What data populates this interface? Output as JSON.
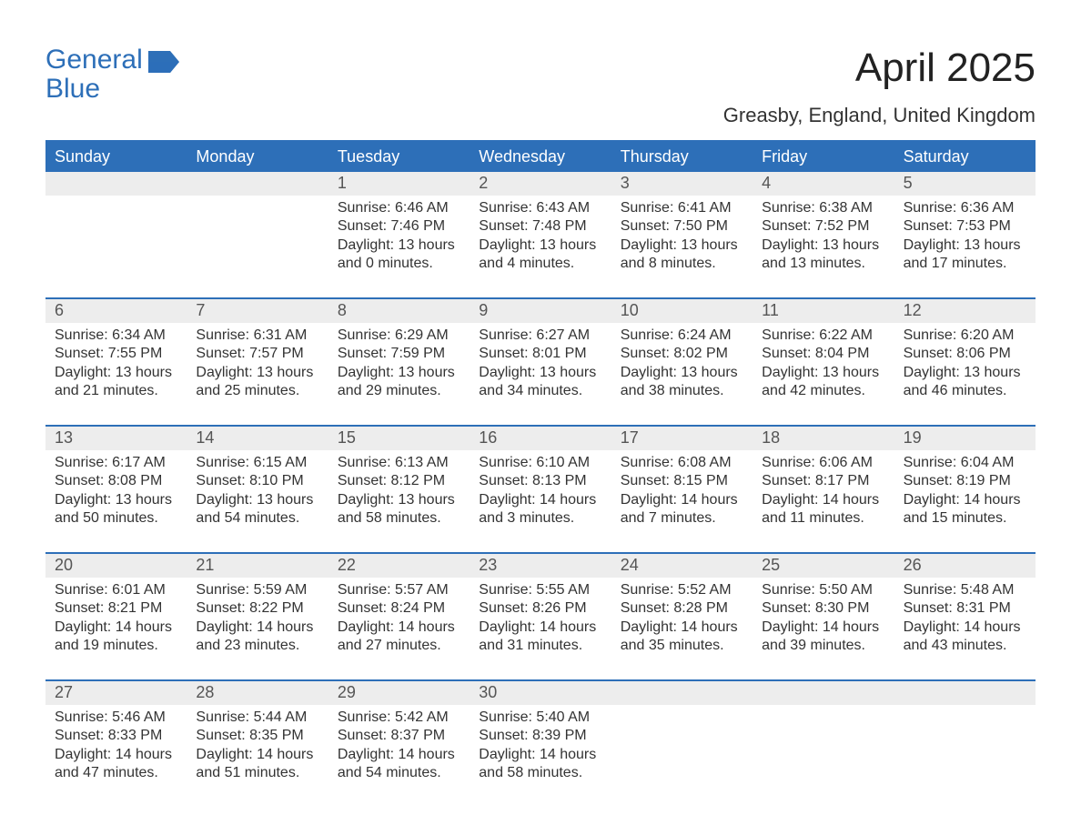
{
  "brand": {
    "line1": "General",
    "line2": "Blue",
    "logo_color": "#2d6fb8"
  },
  "title": "April 2025",
  "subtitle": "Greasby, England, United Kingdom",
  "colors": {
    "header_bg": "#2d6fb8",
    "header_text": "#ffffff",
    "daynum_bg": "#ededed",
    "daynum_text": "#555555",
    "body_text": "#333333",
    "divider": "#2d6fb8",
    "page_bg": "#ffffff"
  },
  "weekdays": [
    "Sunday",
    "Monday",
    "Tuesday",
    "Wednesday",
    "Thursday",
    "Friday",
    "Saturday"
  ],
  "weeks": [
    [
      {
        "num": "",
        "sunrise": "",
        "sunset": "",
        "daylight": ""
      },
      {
        "num": "",
        "sunrise": "",
        "sunset": "",
        "daylight": ""
      },
      {
        "num": "1",
        "sunrise": "Sunrise: 6:46 AM",
        "sunset": "Sunset: 7:46 PM",
        "daylight": "Daylight: 13 hours and 0 minutes."
      },
      {
        "num": "2",
        "sunrise": "Sunrise: 6:43 AM",
        "sunset": "Sunset: 7:48 PM",
        "daylight": "Daylight: 13 hours and 4 minutes."
      },
      {
        "num": "3",
        "sunrise": "Sunrise: 6:41 AM",
        "sunset": "Sunset: 7:50 PM",
        "daylight": "Daylight: 13 hours and 8 minutes."
      },
      {
        "num": "4",
        "sunrise": "Sunrise: 6:38 AM",
        "sunset": "Sunset: 7:52 PM",
        "daylight": "Daylight: 13 hours and 13 minutes."
      },
      {
        "num": "5",
        "sunrise": "Sunrise: 6:36 AM",
        "sunset": "Sunset: 7:53 PM",
        "daylight": "Daylight: 13 hours and 17 minutes."
      }
    ],
    [
      {
        "num": "6",
        "sunrise": "Sunrise: 6:34 AM",
        "sunset": "Sunset: 7:55 PM",
        "daylight": "Daylight: 13 hours and 21 minutes."
      },
      {
        "num": "7",
        "sunrise": "Sunrise: 6:31 AM",
        "sunset": "Sunset: 7:57 PM",
        "daylight": "Daylight: 13 hours and 25 minutes."
      },
      {
        "num": "8",
        "sunrise": "Sunrise: 6:29 AM",
        "sunset": "Sunset: 7:59 PM",
        "daylight": "Daylight: 13 hours and 29 minutes."
      },
      {
        "num": "9",
        "sunrise": "Sunrise: 6:27 AM",
        "sunset": "Sunset: 8:01 PM",
        "daylight": "Daylight: 13 hours and 34 minutes."
      },
      {
        "num": "10",
        "sunrise": "Sunrise: 6:24 AM",
        "sunset": "Sunset: 8:02 PM",
        "daylight": "Daylight: 13 hours and 38 minutes."
      },
      {
        "num": "11",
        "sunrise": "Sunrise: 6:22 AM",
        "sunset": "Sunset: 8:04 PM",
        "daylight": "Daylight: 13 hours and 42 minutes."
      },
      {
        "num": "12",
        "sunrise": "Sunrise: 6:20 AM",
        "sunset": "Sunset: 8:06 PM",
        "daylight": "Daylight: 13 hours and 46 minutes."
      }
    ],
    [
      {
        "num": "13",
        "sunrise": "Sunrise: 6:17 AM",
        "sunset": "Sunset: 8:08 PM",
        "daylight": "Daylight: 13 hours and 50 minutes."
      },
      {
        "num": "14",
        "sunrise": "Sunrise: 6:15 AM",
        "sunset": "Sunset: 8:10 PM",
        "daylight": "Daylight: 13 hours and 54 minutes."
      },
      {
        "num": "15",
        "sunrise": "Sunrise: 6:13 AM",
        "sunset": "Sunset: 8:12 PM",
        "daylight": "Daylight: 13 hours and 58 minutes."
      },
      {
        "num": "16",
        "sunrise": "Sunrise: 6:10 AM",
        "sunset": "Sunset: 8:13 PM",
        "daylight": "Daylight: 14 hours and 3 minutes."
      },
      {
        "num": "17",
        "sunrise": "Sunrise: 6:08 AM",
        "sunset": "Sunset: 8:15 PM",
        "daylight": "Daylight: 14 hours and 7 minutes."
      },
      {
        "num": "18",
        "sunrise": "Sunrise: 6:06 AM",
        "sunset": "Sunset: 8:17 PM",
        "daylight": "Daylight: 14 hours and 11 minutes."
      },
      {
        "num": "19",
        "sunrise": "Sunrise: 6:04 AM",
        "sunset": "Sunset: 8:19 PM",
        "daylight": "Daylight: 14 hours and 15 minutes."
      }
    ],
    [
      {
        "num": "20",
        "sunrise": "Sunrise: 6:01 AM",
        "sunset": "Sunset: 8:21 PM",
        "daylight": "Daylight: 14 hours and 19 minutes."
      },
      {
        "num": "21",
        "sunrise": "Sunrise: 5:59 AM",
        "sunset": "Sunset: 8:22 PM",
        "daylight": "Daylight: 14 hours and 23 minutes."
      },
      {
        "num": "22",
        "sunrise": "Sunrise: 5:57 AM",
        "sunset": "Sunset: 8:24 PM",
        "daylight": "Daylight: 14 hours and 27 minutes."
      },
      {
        "num": "23",
        "sunrise": "Sunrise: 5:55 AM",
        "sunset": "Sunset: 8:26 PM",
        "daylight": "Daylight: 14 hours and 31 minutes."
      },
      {
        "num": "24",
        "sunrise": "Sunrise: 5:52 AM",
        "sunset": "Sunset: 8:28 PM",
        "daylight": "Daylight: 14 hours and 35 minutes."
      },
      {
        "num": "25",
        "sunrise": "Sunrise: 5:50 AM",
        "sunset": "Sunset: 8:30 PM",
        "daylight": "Daylight: 14 hours and 39 minutes."
      },
      {
        "num": "26",
        "sunrise": "Sunrise: 5:48 AM",
        "sunset": "Sunset: 8:31 PM",
        "daylight": "Daylight: 14 hours and 43 minutes."
      }
    ],
    [
      {
        "num": "27",
        "sunrise": "Sunrise: 5:46 AM",
        "sunset": "Sunset: 8:33 PM",
        "daylight": "Daylight: 14 hours and 47 minutes."
      },
      {
        "num": "28",
        "sunrise": "Sunrise: 5:44 AM",
        "sunset": "Sunset: 8:35 PM",
        "daylight": "Daylight: 14 hours and 51 minutes."
      },
      {
        "num": "29",
        "sunrise": "Sunrise: 5:42 AM",
        "sunset": "Sunset: 8:37 PM",
        "daylight": "Daylight: 14 hours and 54 minutes."
      },
      {
        "num": "30",
        "sunrise": "Sunrise: 5:40 AM",
        "sunset": "Sunset: 8:39 PM",
        "daylight": "Daylight: 14 hours and 58 minutes."
      },
      {
        "num": "",
        "sunrise": "",
        "sunset": "",
        "daylight": ""
      },
      {
        "num": "",
        "sunrise": "",
        "sunset": "",
        "daylight": ""
      },
      {
        "num": "",
        "sunrise": "",
        "sunset": "",
        "daylight": ""
      }
    ]
  ]
}
